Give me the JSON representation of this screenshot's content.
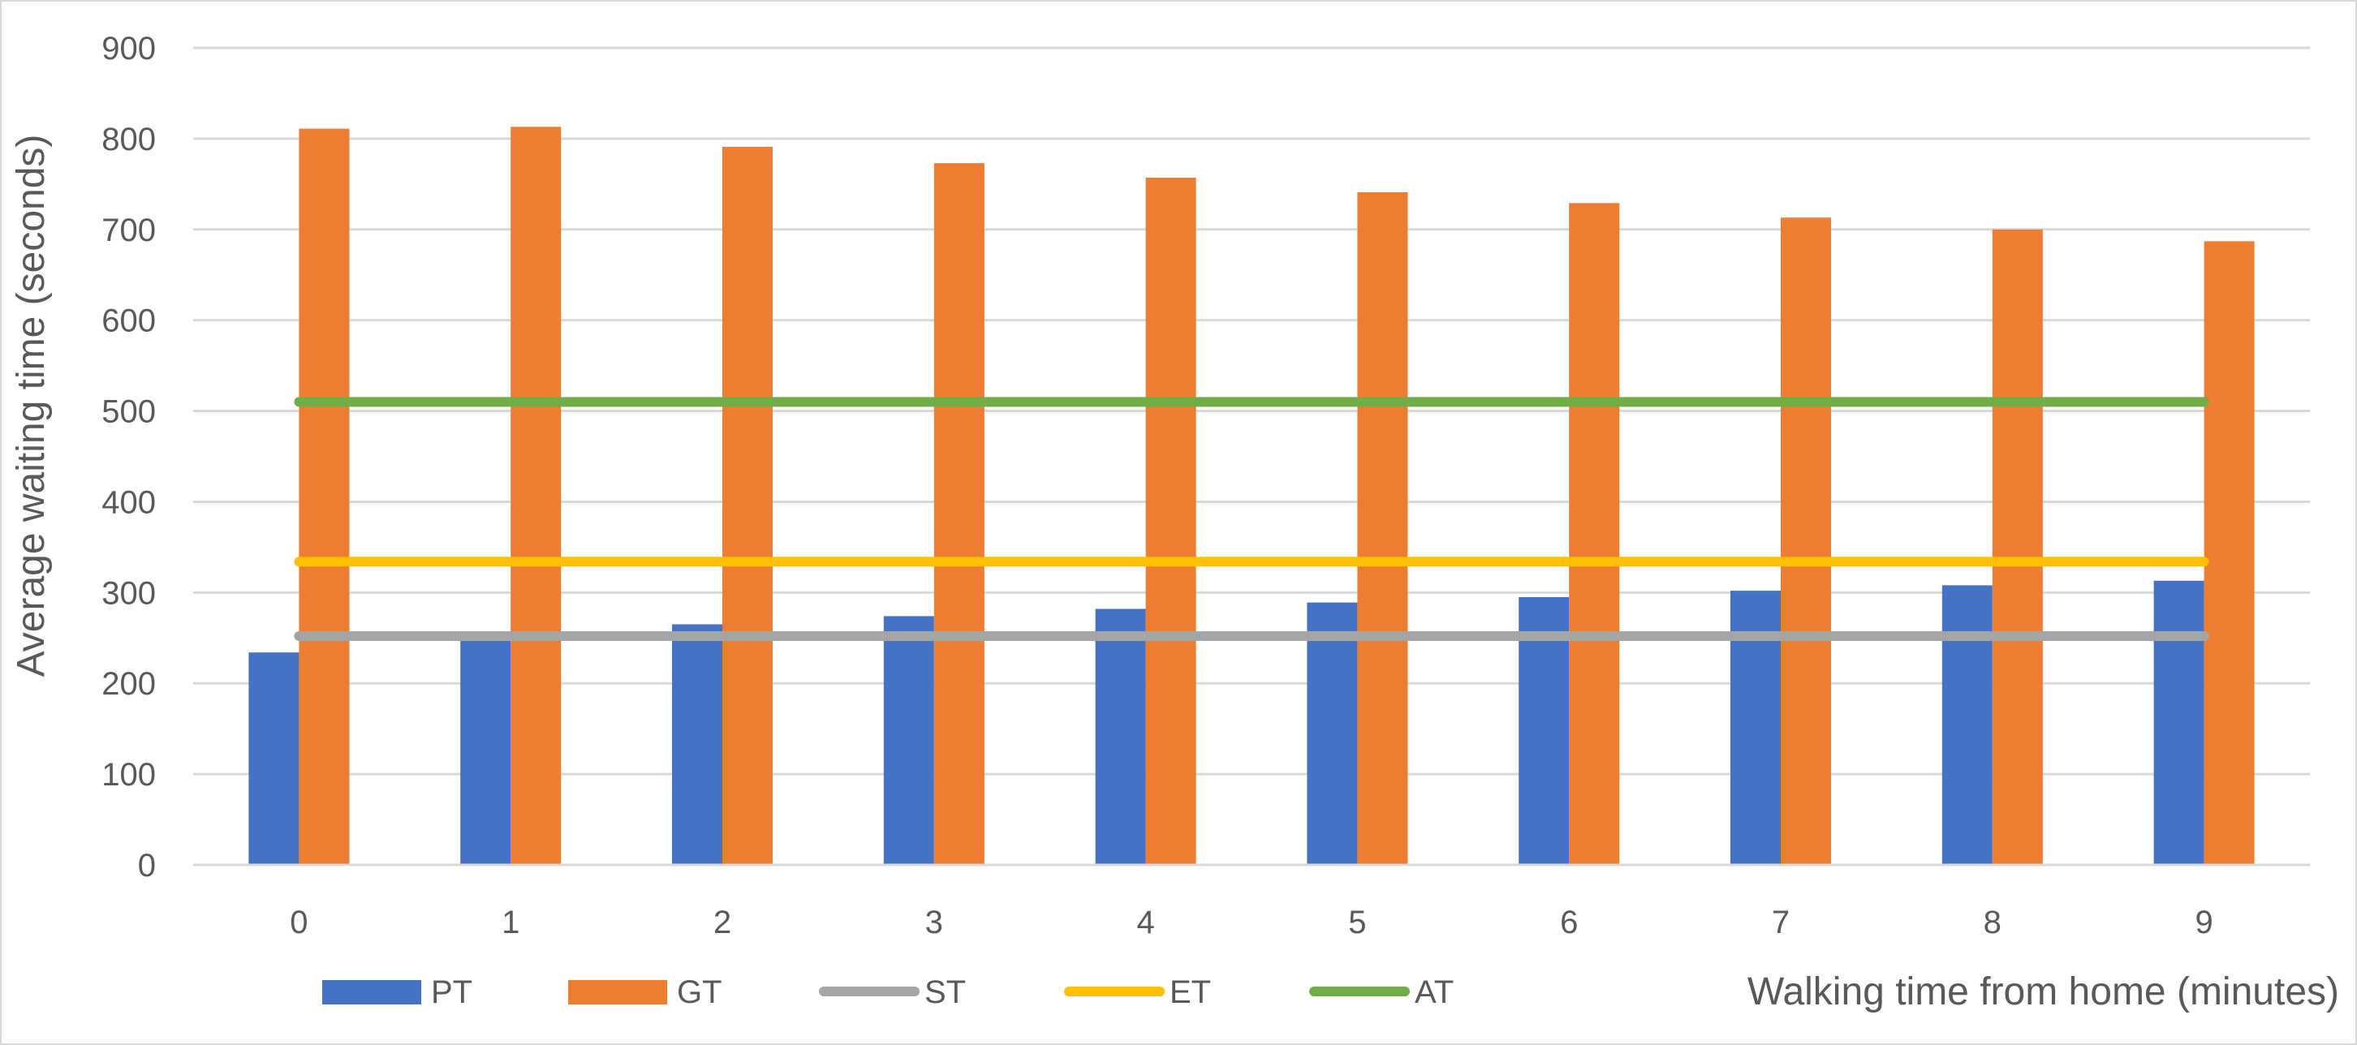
{
  "chart_data": {
    "type": "bar",
    "title": "",
    "xlabel": "Walking time from home (minutes)",
    "ylabel": "Average waiting time (seconds)",
    "categories": [
      "0",
      "1",
      "2",
      "3",
      "4",
      "5",
      "6",
      "7",
      "8",
      "9"
    ],
    "ylim": [
      0,
      900
    ],
    "yticks": [
      0,
      100,
      200,
      300,
      400,
      500,
      600,
      700,
      800,
      900
    ],
    "grid": true,
    "legend_position": "bottom",
    "series": [
      {
        "name": "PT",
        "kind": "bar",
        "color": "#4472c4",
        "values": [
          234,
          254,
          265,
          274,
          282,
          289,
          295,
          302,
          308,
          313
        ]
      },
      {
        "name": "GT",
        "kind": "bar",
        "color": "#ed7d31",
        "values": [
          811,
          813,
          791,
          773,
          757,
          741,
          729,
          713,
          700,
          687
        ]
      },
      {
        "name": "ST",
        "kind": "line",
        "color": "#a5a5a5",
        "values": [
          252,
          252,
          252,
          252,
          252,
          252,
          252,
          252,
          252,
          252
        ]
      },
      {
        "name": "ET",
        "kind": "line",
        "color": "#ffc000",
        "values": [
          334,
          334,
          334,
          334,
          334,
          334,
          334,
          334,
          334,
          334
        ]
      },
      {
        "name": "AT",
        "kind": "line",
        "color": "#70ad47",
        "values": [
          510,
          510,
          510,
          510,
          510,
          510,
          510,
          510,
          510,
          510
        ]
      }
    ]
  }
}
